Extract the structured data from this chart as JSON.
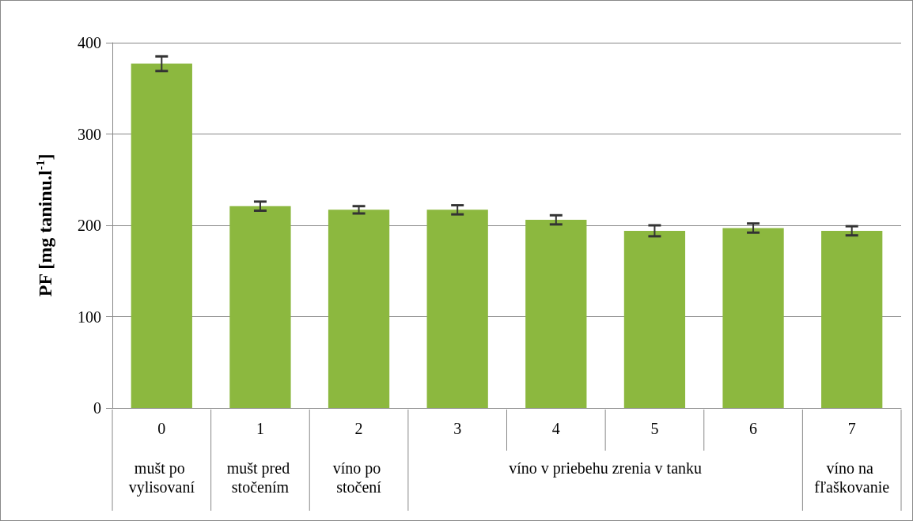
{
  "chart_data": {
    "type": "bar",
    "ylabel": "PF [mg taninu.l$^{-1}$]",
    "categories": [
      "0",
      "1",
      "2",
      "3",
      "4",
      "5",
      "6",
      "7"
    ],
    "values": [
      377,
      221,
      217,
      217,
      206,
      194,
      197,
      194
    ],
    "errors": [
      8,
      5,
      4,
      5,
      5,
      6,
      5,
      5
    ],
    "color": "#8cb83f",
    "ylim": [
      0,
      400
    ],
    "yticks": [
      0,
      100,
      200,
      300,
      400
    ],
    "grid": "y",
    "annotations": [
      "mušt po vylisovaní",
      "mušt pred stočením",
      "víno po stočení",
      "víno v priebehu zrenia v tanku",
      "víno na fľaškovanie"
    ]
  }
}
